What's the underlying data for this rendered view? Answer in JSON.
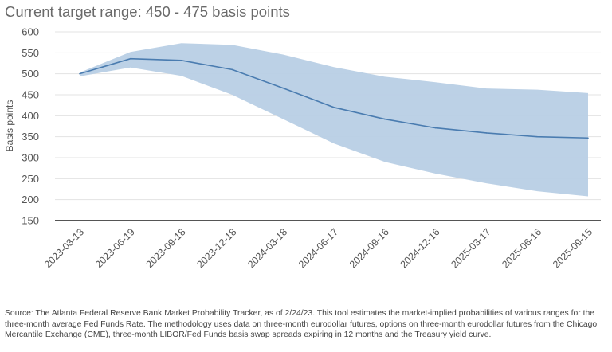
{
  "title": "Current target range: 450 - 475 basis points",
  "footnote": "Source: The Atlanta Federal Reserve Bank Market Probability Tracker, as of 2/24/23. This tool estimates the market-implied probabilities of various ranges for the three-month average Fed Funds Rate. The methodology uses data on three-month eurodollar futures, options on three-month eurodollar futures from the Chicago Mercantile Exchange (CME), three-month LIBOR/Fed Funds basis swap spreads expiring in 12 months and the Treasury yield curve.",
  "chart_data": {
    "type": "area",
    "title": "Current target range: 450 - 475 basis points",
    "xlabel": "",
    "ylabel": "Basis points",
    "ylim": [
      150,
      600
    ],
    "yticks": [
      150,
      200,
      250,
      300,
      350,
      400,
      450,
      500,
      550,
      600
    ],
    "grid": true,
    "categories": [
      "2023-03-13",
      "2023-06-19",
      "2023-09-18",
      "2023-12-18",
      "2024-03-18",
      "2024-06-17",
      "2024-09-16",
      "2024-12-16",
      "2025-03-17",
      "2025-06-16",
      "2025-09-15"
    ],
    "series": [
      {
        "role": "median",
        "values": [
          500,
          536,
          532,
          510,
          466,
          420,
          392,
          371,
          359,
          350,
          347
        ],
        "color": "#4a7cb0"
      },
      {
        "role": "upper",
        "values": [
          503,
          552,
          573,
          569,
          546,
          516,
          493,
          480,
          465,
          462,
          454
        ]
      },
      {
        "role": "lower",
        "values": [
          494,
          515,
          495,
          450,
          392,
          334,
          290,
          262,
          239,
          220,
          208
        ]
      }
    ],
    "band_color": "#b8cfe5",
    "axis_color": "#555555"
  }
}
